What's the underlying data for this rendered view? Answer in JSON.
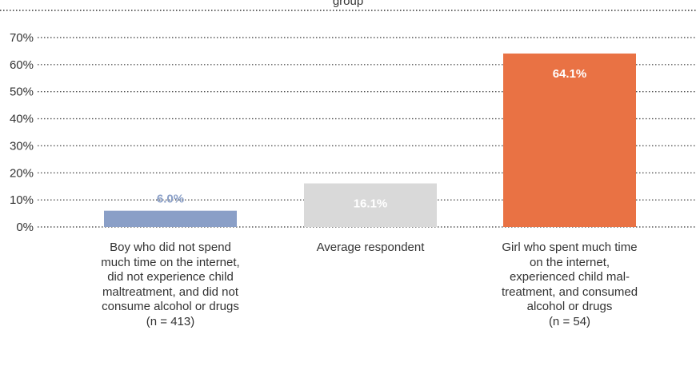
{
  "chart_data": {
    "type": "bar",
    "title": "...group...",
    "categories": [
      "Boy who did not spend\nmuch time on the internet,\ndid not experience child\nmaltreatment, and did not\nconsume alcohol or drugs\n(n = 413)",
      "Average respondent",
      "Girl who spent much time\non the internet,\nexperienced child mal-\ntreatment, and consumed\nalcohol or drugs\n(n = 54)"
    ],
    "values": [
      6.0,
      16.1,
      64.1
    ],
    "value_labels": [
      "6.0%",
      "16.1%",
      "64.1%"
    ],
    "bar_colors": [
      "#8a9fc7",
      "#d9d9d9",
      "#e97244"
    ],
    "value_label_colors": [
      "#8a9fc7",
      "#ffffff",
      "#ffffff"
    ],
    "ylim": [
      0,
      70
    ],
    "yticks": [
      "0%",
      "10%",
      "20%",
      "30%",
      "40%",
      "50%",
      "60%",
      "70%"
    ],
    "grid": true,
    "xlabel": "",
    "ylabel": ""
  }
}
